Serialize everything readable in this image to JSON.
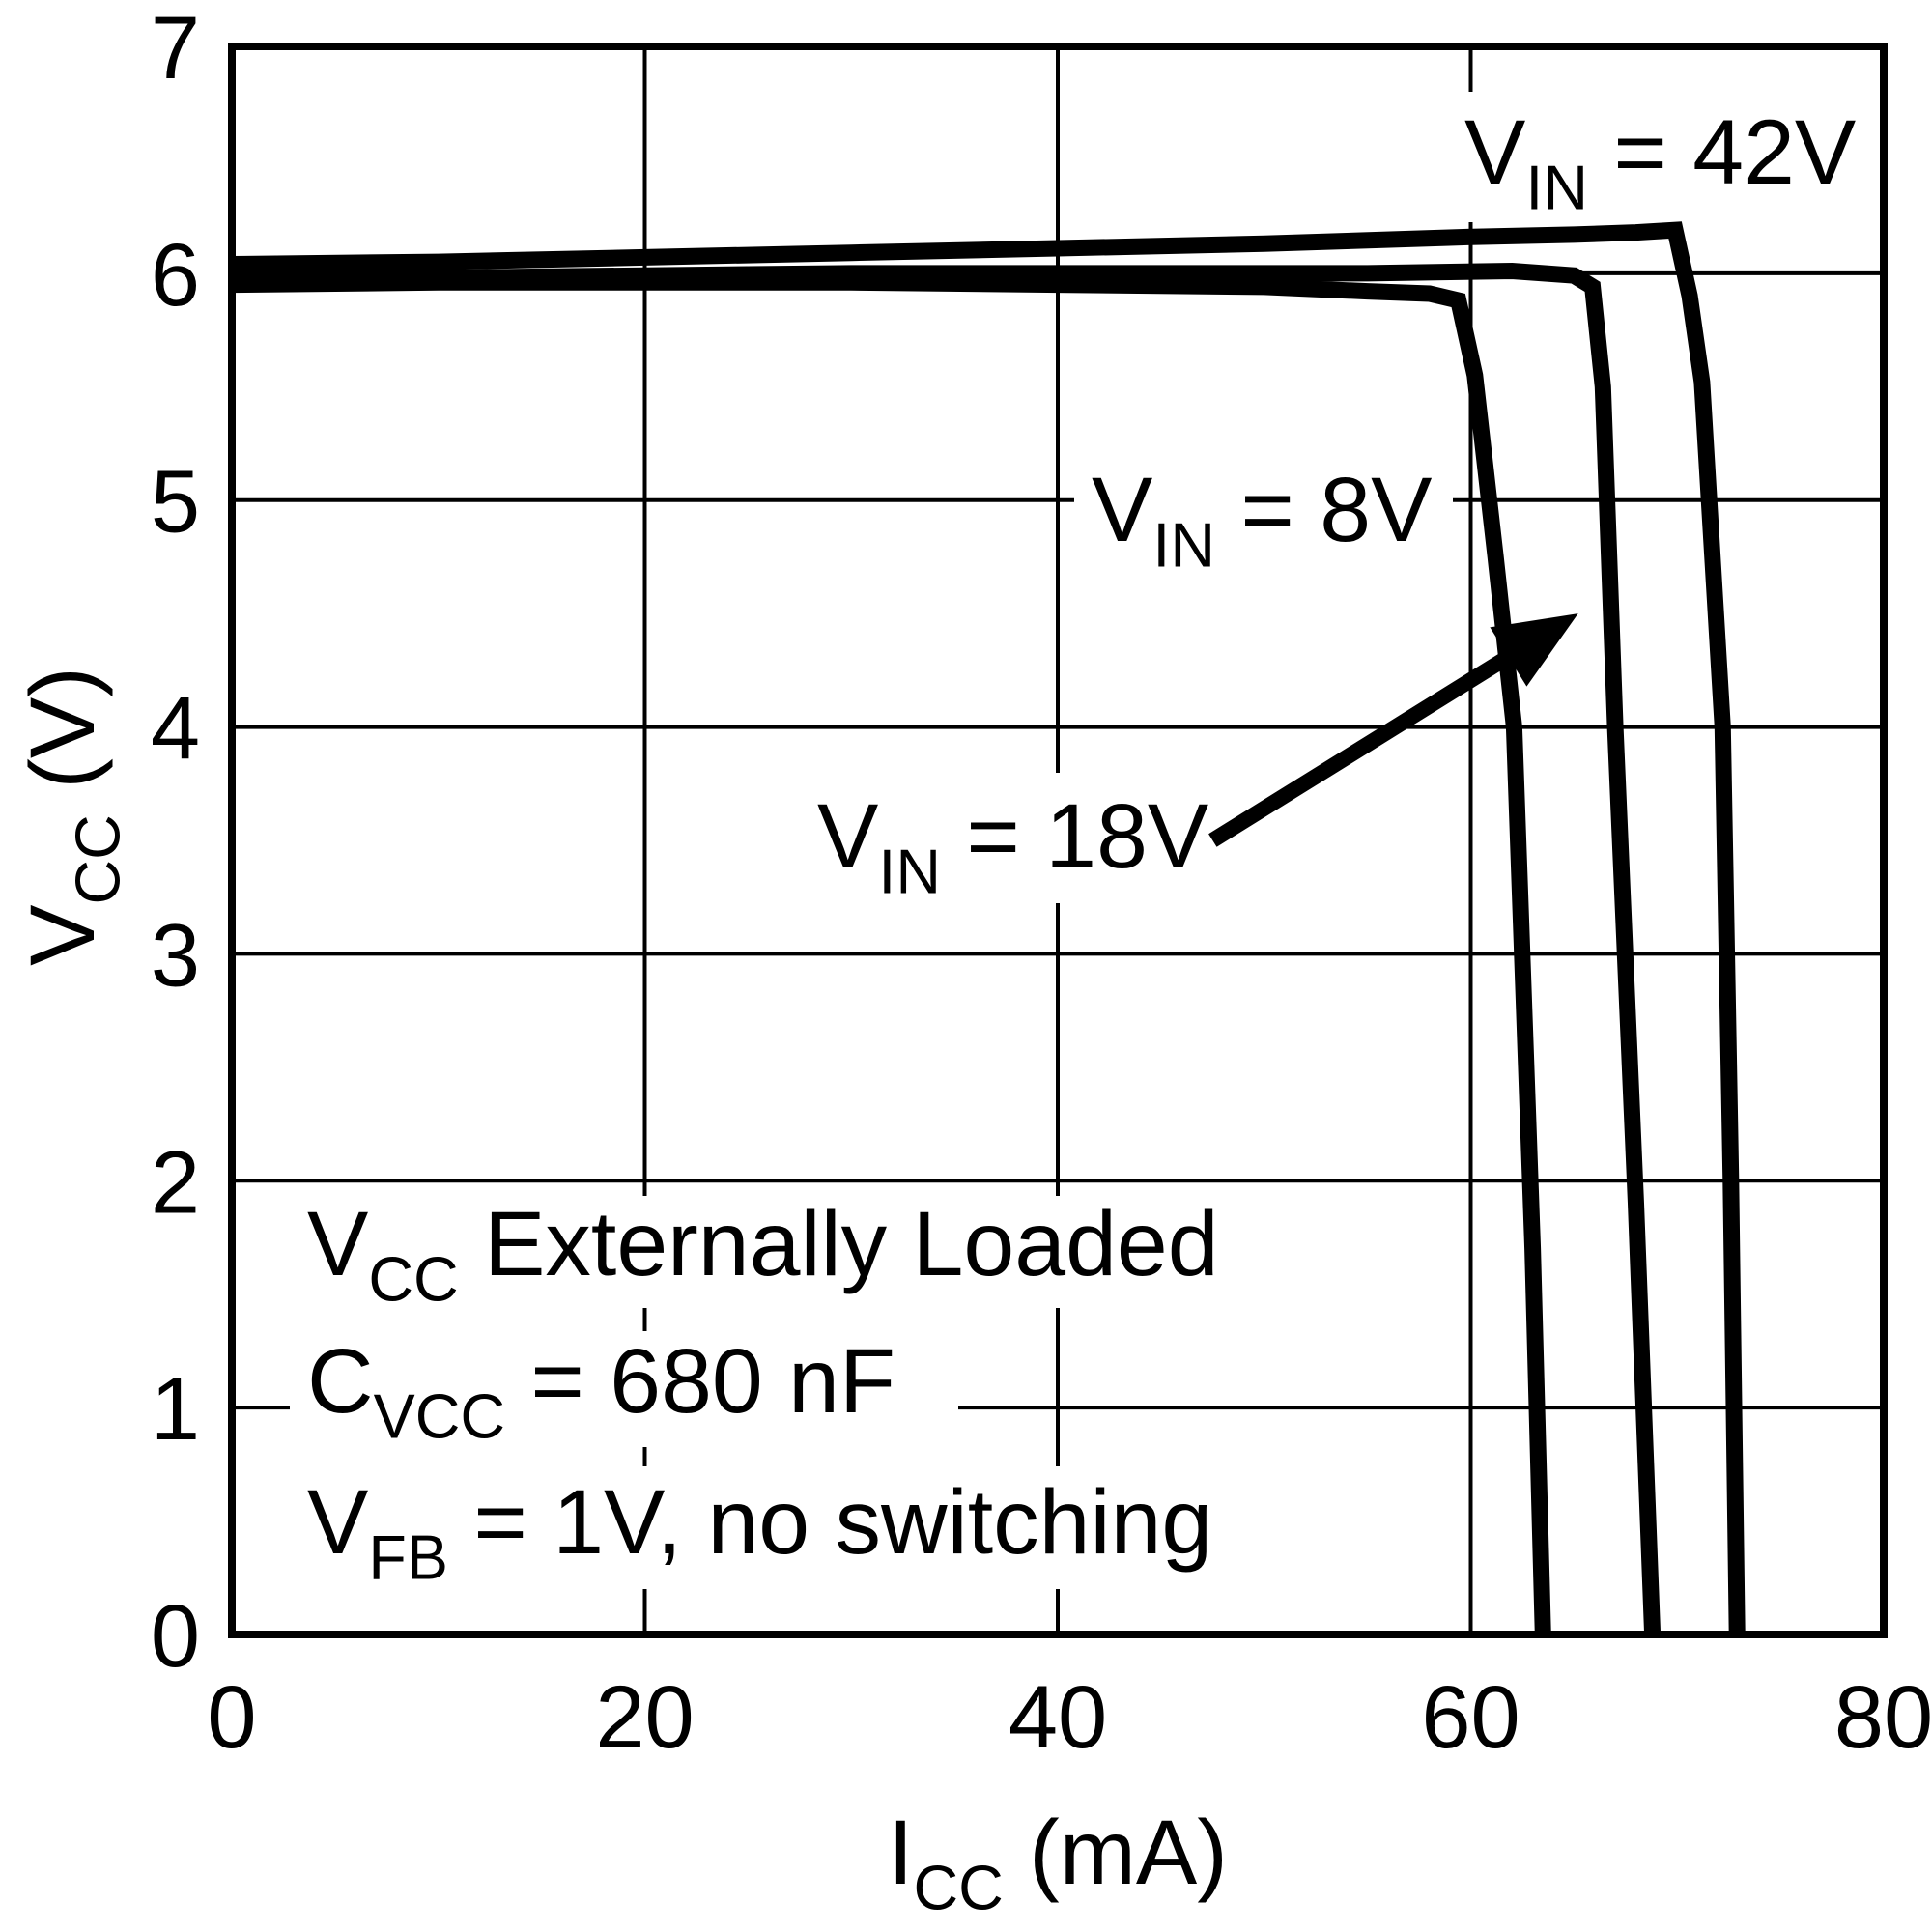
{
  "colors": {
    "background": "#ffffff",
    "foreground": "#000000"
  },
  "chart_data": {
    "type": "line",
    "title": "",
    "xlabel": "ICC (mA)",
    "ylabel": "VCC (V)",
    "xlabel_parts": [
      [
        "I"
      ],
      [
        "CC",
        "sub"
      ],
      [
        " (mA)"
      ]
    ],
    "ylabel_parts": [
      [
        "V"
      ],
      [
        "CC",
        "sub"
      ],
      [
        " (V)"
      ]
    ],
    "xlim": [
      0,
      80
    ],
    "ylim": [
      0,
      7
    ],
    "x_ticks": [
      0,
      20,
      40,
      60,
      80
    ],
    "y_ticks": [
      0,
      1,
      2,
      3,
      4,
      5,
      6,
      7
    ],
    "grid": true,
    "legend_position": "none",
    "series": [
      {
        "name": "VIN = 8V",
        "points": [
          [
            0,
            5.95
          ],
          [
            10,
            5.96
          ],
          [
            20,
            5.96
          ],
          [
            30,
            5.96
          ],
          [
            40,
            5.95
          ],
          [
            50,
            5.94
          ],
          [
            55,
            5.92
          ],
          [
            58,
            5.91
          ],
          [
            59.4,
            5.88
          ],
          [
            60.2,
            5.55
          ],
          [
            61.2,
            4.75
          ],
          [
            62.1,
            4.0
          ],
          [
            63.0,
            1.7
          ],
          [
            63.5,
            0
          ]
        ]
      },
      {
        "name": "VIN = 18V",
        "points": [
          [
            0,
            5.97
          ],
          [
            10,
            5.98
          ],
          [
            20,
            5.99
          ],
          [
            30,
            6.0
          ],
          [
            40,
            6.0
          ],
          [
            50,
            6.0
          ],
          [
            55,
            6.0
          ],
          [
            62,
            6.01
          ],
          [
            65,
            5.99
          ],
          [
            65.9,
            5.94
          ],
          [
            66.4,
            5.5
          ],
          [
            67.0,
            4.0
          ],
          [
            68.0,
            1.9
          ],
          [
            68.8,
            0
          ]
        ]
      },
      {
        "name": "VIN = 42V",
        "points": [
          [
            0,
            6.04
          ],
          [
            10,
            6.05
          ],
          [
            20,
            6.07
          ],
          [
            30,
            6.09
          ],
          [
            40,
            6.11
          ],
          [
            50,
            6.13
          ],
          [
            60,
            6.16
          ],
          [
            65,
            6.17
          ],
          [
            68,
            6.18
          ],
          [
            69.9,
            6.19
          ],
          [
            70.6,
            5.9
          ],
          [
            71.2,
            5.52
          ],
          [
            72.2,
            4.0
          ],
          [
            72.6,
            2.0
          ],
          [
            72.9,
            0
          ]
        ]
      }
    ]
  },
  "labels": {
    "vin42": {
      "text": "VIN = 42V",
      "parts": [
        [
          "V"
        ],
        [
          "IN",
          "sub"
        ],
        [
          " = 42V"
        ]
      ]
    },
    "vin8": {
      "text": "VIN = 8V",
      "parts": [
        [
          "V"
        ],
        [
          "IN",
          "sub"
        ],
        [
          " = 8V"
        ]
      ]
    },
    "vin18": {
      "text": "VIN = 18V",
      "parts": [
        [
          "V"
        ],
        [
          "IN",
          "sub"
        ],
        [
          " = 18V"
        ]
      ]
    },
    "cond1": {
      "text": "VCC Externally Loaded",
      "parts": [
        [
          "V"
        ],
        [
          "CC",
          "sub"
        ],
        [
          " Externally Loaded"
        ]
      ]
    },
    "cond2": {
      "text": "CVCC = 680 nF",
      "parts": [
        [
          "C"
        ],
        [
          "VCC",
          "sub"
        ],
        [
          " = 680 nF"
        ]
      ]
    },
    "cond3": {
      "text": "VFB = 1V, no switching",
      "parts": [
        [
          "V"
        ],
        [
          "FB",
          "sub"
        ],
        [
          " = 1V, no switching"
        ]
      ]
    }
  },
  "annotations": {
    "arrow": {
      "points_at": "VIN = 18V curve",
      "from_ma": 47.5,
      "from_v": 3.5,
      "to_ma": 65.2,
      "to_v": 4.5
    }
  }
}
